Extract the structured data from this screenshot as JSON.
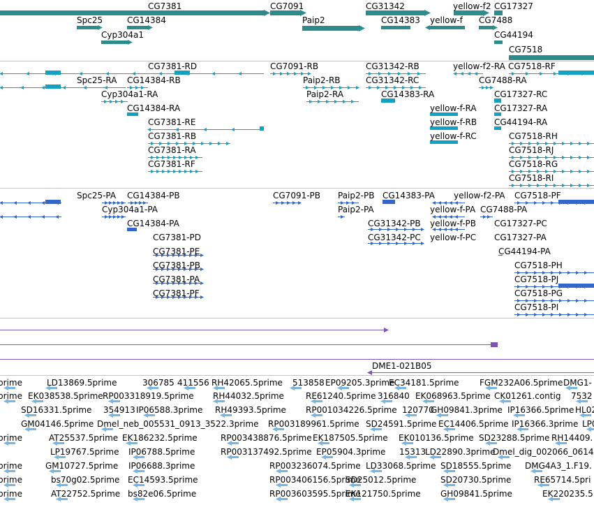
{
  "colors": {
    "gene": "#2e8b8b",
    "transcript": "#12a1c0",
    "protein": "#3366cc",
    "purple": "#7b57b0",
    "est": "#79b6df"
  },
  "gene_track": [
    {
      "label": "CG7381"
    },
    {
      "label": "CG7091"
    },
    {
      "label": "CG31342"
    },
    {
      "label": "yellow-f2"
    },
    {
      "label": "CG17327"
    },
    {
      "label": "Spc25"
    },
    {
      "label": "CG14384"
    },
    {
      "label": "Paip2"
    },
    {
      "label": "CG14383"
    },
    {
      "label": "yellow-f"
    },
    {
      "label": "CG7488"
    },
    {
      "label": "Cyp304a1"
    },
    {
      "label": "CG44194"
    },
    {
      "label": "CG7518"
    }
  ],
  "transcript_track": [
    {
      "label": "CG7381-RD"
    },
    {
      "label": "CG7091-RB"
    },
    {
      "label": "CG31342-RB"
    },
    {
      "label": "yellow-f2-RA"
    },
    {
      "label": "CG7518-RF"
    },
    {
      "label": "Spc25-RA"
    },
    {
      "label": "CG14384-RB"
    },
    {
      "label": "Paip2-RB"
    },
    {
      "label": "CG31342-RC"
    },
    {
      "label": "CG7488-RA"
    },
    {
      "label": "Cyp304a1-RA"
    },
    {
      "label": "Paip2-RA"
    },
    {
      "label": "CG14383-RA"
    },
    {
      "label": "CG17327-RC"
    },
    {
      "label": "CG14384-RA"
    },
    {
      "label": "yellow-f-RA"
    },
    {
      "label": "CG17327-RA"
    },
    {
      "label": "CG7381-RE"
    },
    {
      "label": "yellow-f-RB"
    },
    {
      "label": "CG44194-RA"
    },
    {
      "label": "CG7381-RB"
    },
    {
      "label": "yellow-f-RC"
    },
    {
      "label": "CG7518-RH"
    },
    {
      "label": "CG7381-RA"
    },
    {
      "label": "CG7518-RJ"
    },
    {
      "label": "CG7381-RF"
    },
    {
      "label": "CG7518-RG"
    },
    {
      "label": "CG7518-RI"
    }
  ],
  "protein_track": [
    {
      "label": "Spc25-PA"
    },
    {
      "label": "CG14384-PB"
    },
    {
      "label": "CG7091-PB"
    },
    {
      "label": "Paip2-PB"
    },
    {
      "label": "CG14383-PA"
    },
    {
      "label": "yellow-f2-PA"
    },
    {
      "label": "CG7518-PF"
    },
    {
      "label": "Cyp304a1-PA"
    },
    {
      "label": "Paip2-PA"
    },
    {
      "label": "yellow-f-PA"
    },
    {
      "label": "CG7488-PA"
    },
    {
      "label": "CG14384-PA"
    },
    {
      "label": "CG31342-PB"
    },
    {
      "label": "yellow-f-PB"
    },
    {
      "label": "CG17327-PC"
    },
    {
      "label": "CG7381-PD"
    },
    {
      "label": "CG31342-PC"
    },
    {
      "label": "yellow-f-PC"
    },
    {
      "label": "CG17327-PA"
    },
    {
      "label": "CG7381-PE"
    },
    {
      "label": "CG44194-PA"
    },
    {
      "label": "CG7381-PB"
    },
    {
      "label": "CG7518-PH"
    },
    {
      "label": "CG7381-PA"
    },
    {
      "label": "CG7518-PJ"
    },
    {
      "label": "CG7381-PF"
    },
    {
      "label": "CG7518-PG"
    },
    {
      "label": "CG7518-PI"
    }
  ],
  "clone_track": [
    {
      "label": "DME1-021B05"
    }
  ],
  "est_track": [
    {
      "label": "prime"
    },
    {
      "label": "LD13869.5prime"
    },
    {
      "label": "306785"
    },
    {
      "label": "411556"
    },
    {
      "label": "RH42065.5prime"
    },
    {
      "label": "513858"
    },
    {
      "label": "EP09205.3prime"
    },
    {
      "label": "EC34181.5prime"
    },
    {
      "label": "FGM232A06.5prime"
    },
    {
      "label": "DMG1-"
    },
    {
      "label": "prime"
    },
    {
      "label": "EK038538.5prime"
    },
    {
      "label": "RP003318919.5prime"
    },
    {
      "label": "RH44032.5prime"
    },
    {
      "label": "RE61240.5prime"
    },
    {
      "label": "316840"
    },
    {
      "label": "EK068963.5prime"
    },
    {
      "label": "CK01261.contig"
    },
    {
      "label": "7532"
    },
    {
      "label": "SD16331.5prime"
    },
    {
      "label": "354913"
    },
    {
      "label": "IP06588.3prime"
    },
    {
      "label": "RH49393.5prime"
    },
    {
      "label": "RP001034226.5prime"
    },
    {
      "label": "120770"
    },
    {
      "label": "GH09841.3prime"
    },
    {
      "label": "IP16366.5prime"
    },
    {
      "label": "HL02"
    },
    {
      "label": "GM04146.5prime"
    },
    {
      "label": "Dmel_neb_005531_0913_3522.3prime"
    },
    {
      "label": "RP003189961.5prime"
    },
    {
      "label": "SD24591.5prime"
    },
    {
      "label": "EC14406.5prime"
    },
    {
      "label": "IP16366.3prime"
    },
    {
      "label": "LP0"
    },
    {
      "label": "prime"
    },
    {
      "label": "AT25537.5prime"
    },
    {
      "label": "EK186232.5prime"
    },
    {
      "label": "RP003438876.5prime"
    },
    {
      "label": "EK187505.5prime"
    },
    {
      "label": "EK010136.5prime"
    },
    {
      "label": "SD23288.5prime"
    },
    {
      "label": "RH14409."
    },
    {
      "label": "LP19767.5prime"
    },
    {
      "label": "IP06788.5prime"
    },
    {
      "label": "RP003137492.5prime"
    },
    {
      "label": "EP05904.3prime"
    },
    {
      "label": "15313"
    },
    {
      "label": "LD22890.3prime"
    },
    {
      "label": "Dmel_dig_002066_0614"
    },
    {
      "label": "prime"
    },
    {
      "label": "GM10727.5prime"
    },
    {
      "label": "IP06688.3prime"
    },
    {
      "label": "RP003236074.5prime"
    },
    {
      "label": "LD33068.5prime"
    },
    {
      "label": "SD18555.5prime"
    },
    {
      "label": "DMG4A3_1.F19."
    },
    {
      "label": "prime"
    },
    {
      "label": "bs70g02.5prime"
    },
    {
      "label": "EC14593.5prime"
    },
    {
      "label": "RP003406156.5prime"
    },
    {
      "label": "SD25012.5prime"
    },
    {
      "label": "SD20730.5prime"
    },
    {
      "label": "RE65714.5pri"
    },
    {
      "label": "prime"
    },
    {
      "label": "AT22752.5prime"
    },
    {
      "label": "bs82e06.5prime"
    },
    {
      "label": "RP003603595.5prime"
    },
    {
      "label": "EK121750.5prime"
    },
    {
      "label": "GH09841.5prime"
    },
    {
      "label": "EK220235.5"
    }
  ]
}
